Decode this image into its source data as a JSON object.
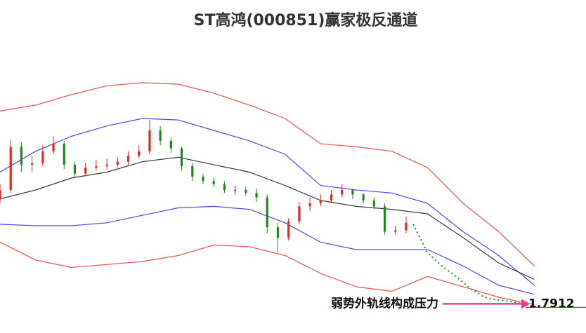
{
  "chart_data": {
    "type": "candlestick",
    "title": "ST高鸿(000851)赢家极反通道",
    "xlim": [
      0,
      164.5
    ],
    "ylim": [
      1.6,
      3.6
    ],
    "candles": {
      "up_color": "#e8261c",
      "down_color": "#1a8a1a",
      "x": [
        0,
        3,
        6,
        9,
        12,
        15,
        18,
        21,
        24,
        27,
        30,
        33,
        36,
        39,
        42,
        45,
        48,
        51,
        54,
        57,
        60,
        63,
        66,
        69,
        72,
        75,
        78,
        81,
        84,
        87,
        90,
        93,
        96,
        99,
        102,
        105,
        108,
        111,
        114
      ],
      "open": [
        2.5,
        2.56,
        2.85,
        2.73,
        2.74,
        2.82,
        2.87,
        2.73,
        2.67,
        2.71,
        2.72,
        2.73,
        2.75,
        2.79,
        2.82,
        2.96,
        2.89,
        2.84,
        2.72,
        2.65,
        2.62,
        2.6,
        2.56,
        2.56,
        2.54,
        2.51,
        2.31,
        2.24,
        2.35,
        2.45,
        2.47,
        2.49,
        2.53,
        2.56,
        2.53,
        2.49,
        2.45,
        2.28,
        2.29
      ],
      "high": [
        2.6,
        2.9,
        2.88,
        2.79,
        2.86,
        2.92,
        2.89,
        2.75,
        2.74,
        2.76,
        2.77,
        2.78,
        2.82,
        2.86,
        3.03,
        2.99,
        2.91,
        2.85,
        2.74,
        2.67,
        2.64,
        2.62,
        2.59,
        2.58,
        2.57,
        2.53,
        2.34,
        2.37,
        2.48,
        2.51,
        2.53,
        2.56,
        2.6,
        2.57,
        2.54,
        2.51,
        2.47,
        2.32,
        2.38
      ],
      "low": [
        2.47,
        2.54,
        2.68,
        2.68,
        2.72,
        2.8,
        2.7,
        2.64,
        2.65,
        2.69,
        2.7,
        2.71,
        2.73,
        2.77,
        2.8,
        2.86,
        2.81,
        2.69,
        2.62,
        2.6,
        2.58,
        2.54,
        2.53,
        2.52,
        2.48,
        2.27,
        2.14,
        2.22,
        2.33,
        2.42,
        2.45,
        2.47,
        2.51,
        2.5,
        2.47,
        2.43,
        2.26,
        2.26,
        2.27
      ],
      "close": [
        2.56,
        2.85,
        2.73,
        2.74,
        2.82,
        2.87,
        2.73,
        2.67,
        2.71,
        2.72,
        2.73,
        2.75,
        2.79,
        2.82,
        2.96,
        2.89,
        2.84,
        2.72,
        2.65,
        2.62,
        2.6,
        2.56,
        2.56,
        2.54,
        2.51,
        2.31,
        2.24,
        2.35,
        2.45,
        2.47,
        2.49,
        2.53,
        2.56,
        2.53,
        2.49,
        2.45,
        2.28,
        2.29,
        2.34
      ]
    },
    "x": [
      0,
      10,
      20,
      30,
      40,
      50,
      60,
      70,
      80,
      90,
      100,
      110,
      120,
      130,
      140,
      150
    ],
    "series": [
      {
        "color": "#f0504a",
        "values": [
          3.09,
          3.13,
          3.2,
          3.26,
          3.28,
          3.27,
          3.21,
          3.13,
          3.04,
          2.87,
          2.85,
          2.82,
          2.71,
          2.47,
          2.28,
          2.05
        ]
      },
      {
        "color": "#4b4bf0",
        "values": [
          2.68,
          2.82,
          2.92,
          2.99,
          3.04,
          3.03,
          2.96,
          2.89,
          2.8,
          2.59,
          2.56,
          2.54,
          2.47,
          2.28,
          2.12,
          1.92
        ]
      },
      {
        "color": "#3a3a3a",
        "values": [
          2.5,
          2.56,
          2.64,
          2.68,
          2.75,
          2.78,
          2.73,
          2.68,
          2.59,
          2.49,
          2.45,
          2.43,
          2.4,
          2.24,
          2.07,
          1.96
        ]
      },
      {
        "color": "#4b4bf0",
        "values": [
          2.33,
          2.32,
          2.32,
          2.34,
          2.39,
          2.44,
          2.45,
          2.43,
          2.34,
          2.21,
          2.16,
          2.16,
          2.16,
          2.05,
          1.92,
          1.86
        ]
      },
      {
        "color": "#f0504a",
        "values": [
          2.21,
          2.09,
          2.04,
          2.06,
          2.08,
          2.12,
          2.19,
          2.18,
          2.12,
          2.0,
          1.91,
          1.88,
          1.98,
          1.91,
          1.84,
          1.79
        ]
      }
    ],
    "projection": {
      "color": "#1a8a1a",
      "x": [
        116,
        120,
        124,
        128,
        132,
        136,
        140,
        144,
        148,
        150
      ],
      "values": [
        2.33,
        2.14,
        2.05,
        1.98,
        1.9,
        1.84,
        1.82,
        1.81,
        1.79,
        1.78
      ]
    },
    "annotation": {
      "text": "弱势外轨线构成压力",
      "value": 1.7912,
      "arrow_color": "#e8408a",
      "level_color": "#1a8a1a"
    }
  }
}
